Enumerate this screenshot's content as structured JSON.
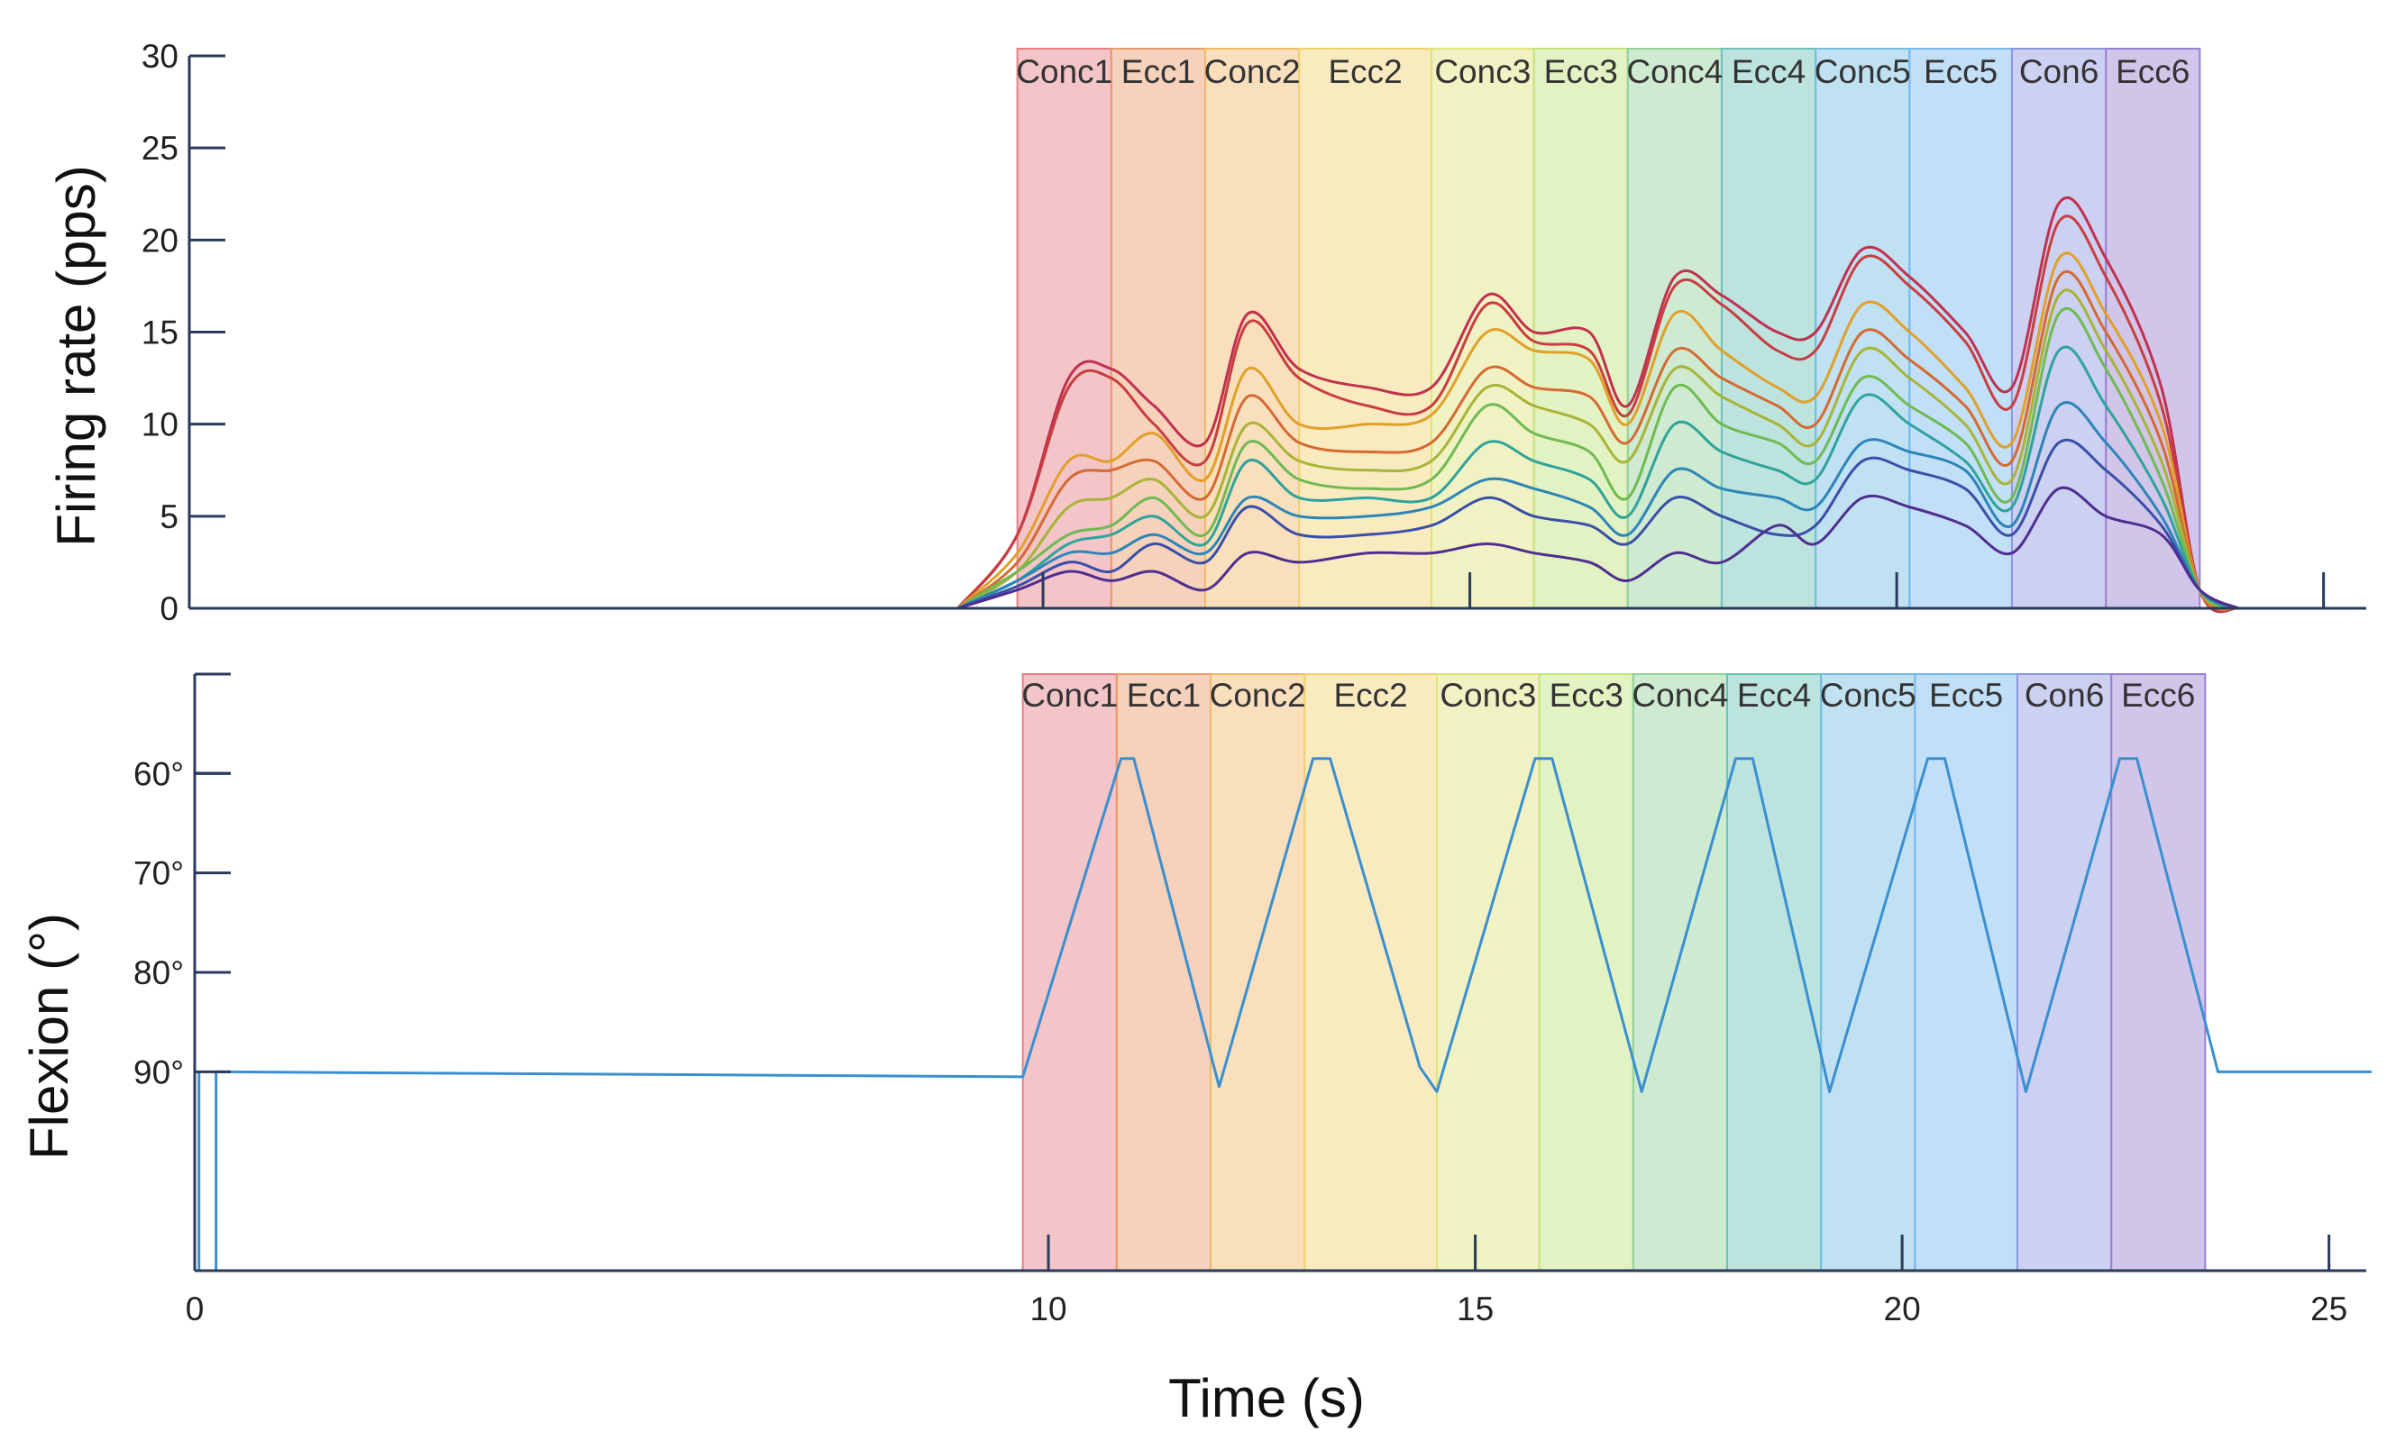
{
  "chart_data": [
    {
      "type": "line",
      "panel": "top",
      "ylabel": "Firing rate (pps)",
      "xlabel": "",
      "ylim": [
        0,
        30
      ],
      "xlim": [
        0,
        25.5
      ],
      "yticks": [
        0,
        5,
        10,
        15,
        20,
        25,
        30
      ],
      "xticks": [
        10,
        15,
        20,
        25
      ],
      "phases": [
        {
          "label": "Conc1",
          "start": 9.7,
          "end": 10.8,
          "color": "#e57f84"
        },
        {
          "label": "Ecc1",
          "start": 10.8,
          "end": 11.9,
          "color": "#ec9a6a"
        },
        {
          "label": "Conc2",
          "start": 11.9,
          "end": 13.0,
          "color": "#f1b86a"
        },
        {
          "label": "Ecc2",
          "start": 13.0,
          "end": 14.55,
          "color": "#f1d272"
        },
        {
          "label": "Conc3",
          "start": 14.55,
          "end": 15.75,
          "color": "#dfe27a"
        },
        {
          "label": "Ecc3",
          "start": 15.75,
          "end": 16.85,
          "color": "#c2e37a"
        },
        {
          "label": "Conc4",
          "start": 16.85,
          "end": 17.95,
          "color": "#92d19a"
        },
        {
          "label": "Ecc4",
          "start": 17.95,
          "end": 19.05,
          "color": "#6cc2b9"
        },
        {
          "label": "Conc5",
          "start": 19.05,
          "end": 20.15,
          "color": "#74bddf"
        },
        {
          "label": "Ecc5",
          "start": 20.15,
          "end": 21.35,
          "color": "#78b8f0"
        },
        {
          "label": "Con6",
          "start": 21.35,
          "end": 22.45,
          "color": "#8f96e0"
        },
        {
          "label": "Ecc6",
          "start": 22.45,
          "end": 23.55,
          "color": "#9880d0"
        }
      ],
      "x": [
        9.0,
        9.7,
        10.3,
        10.8,
        11.3,
        11.9,
        12.4,
        13.0,
        13.8,
        14.55,
        15.2,
        15.75,
        16.4,
        16.85,
        17.4,
        17.95,
        18.6,
        19.05,
        19.6,
        20.15,
        20.8,
        21.35,
        21.9,
        22.45,
        23.1,
        23.55,
        24.0
      ],
      "series": [
        {
          "color": "#c0314f",
          "values": [
            0,
            4,
            12.5,
            13,
            11,
            9,
            16,
            13,
            12,
            12,
            17,
            15,
            15,
            11,
            18,
            17,
            15,
            15,
            19.5,
            18,
            15,
            12,
            22,
            19,
            12,
            1,
            0
          ]
        },
        {
          "color": "#c83e40",
          "values": [
            0,
            4,
            12,
            12.5,
            10,
            8,
            15.5,
            12.5,
            11,
            11,
            16.5,
            14.5,
            14,
            10.5,
            17.5,
            16.5,
            14,
            14,
            19,
            17.5,
            14.5,
            11,
            21,
            18,
            11,
            1,
            0
          ]
        },
        {
          "color": "#e0a02a",
          "values": [
            0,
            3,
            8,
            8,
            9.5,
            7,
            13,
            10,
            10,
            10.5,
            15,
            14,
            13.5,
            10,
            16,
            14,
            12,
            11.5,
            16.5,
            15,
            12,
            9,
            19,
            16,
            10,
            1,
            0
          ]
        },
        {
          "color": "#d46a32",
          "values": [
            0,
            2.5,
            7,
            7.5,
            8,
            6,
            11.5,
            9,
            8.5,
            9,
            13,
            12,
            11.5,
            9,
            14,
            12.5,
            11,
            10,
            15,
            13.5,
            11,
            8,
            18,
            15,
            9,
            1,
            0
          ]
        },
        {
          "color": "#a8b437",
          "values": [
            0,
            2,
            5.5,
            6,
            7,
            5,
            10,
            8,
            7.5,
            8,
            12,
            11,
            10,
            8,
            13,
            11.5,
            10,
            9,
            14,
            12.5,
            10,
            7,
            17,
            14,
            8,
            1,
            0
          ]
        },
        {
          "color": "#6fba52",
          "values": [
            0,
            2,
            4,
            4.5,
            6,
            4,
            9,
            7,
            6.5,
            7,
            11,
            9.5,
            8.5,
            6,
            12,
            10,
            9,
            8,
            12.5,
            11,
            9,
            6,
            16,
            13,
            7,
            1,
            0
          ]
        },
        {
          "color": "#2fa39a",
          "values": [
            0,
            1.5,
            3.5,
            4,
            5,
            3.5,
            8,
            6,
            6,
            6,
            9,
            8,
            7,
            5,
            10,
            8.5,
            7.5,
            7,
            11.5,
            10,
            8,
            5.5,
            14,
            11,
            6,
            1,
            0
          ]
        },
        {
          "color": "#2d85b7",
          "values": [
            0,
            1.5,
            3,
            3,
            4,
            3,
            6,
            5,
            5,
            5.5,
            7,
            6.5,
            5.5,
            4,
            7.5,
            6.5,
            6,
            5.5,
            9,
            8.5,
            7.5,
            4.5,
            11,
            9,
            5,
            1,
            0
          ]
        },
        {
          "color": "#3a4fa8",
          "values": [
            0,
            1.2,
            2.5,
            2,
            3.5,
            2.5,
            5.5,
            4,
            4,
            4.5,
            6,
            5,
            4.5,
            3.5,
            6,
            5,
            4,
            4.5,
            8,
            7.5,
            6.5,
            4,
            9,
            7.5,
            4.5,
            1,
            0
          ]
        },
        {
          "color": "#4f2e8f",
          "values": [
            0,
            1,
            2,
            1.5,
            2,
            1,
            3,
            2.5,
            3,
            3,
            3.5,
            3,
            2.5,
            1.5,
            3,
            2.5,
            4.5,
            3.5,
            6,
            5.5,
            4.5,
            3,
            6.5,
            5,
            4,
            1,
            0
          ]
        }
      ]
    },
    {
      "type": "line",
      "panel": "bottom",
      "ylabel": "Flexion (°)",
      "xlabel": "Time (s)",
      "xlim": [
        0,
        25.5
      ],
      "xticks": [
        0,
        10,
        15,
        20,
        25
      ],
      "xtick_labels": [
        "0",
        "10",
        "15",
        "20",
        "25"
      ],
      "yticks": [
        60,
        70,
        80,
        90
      ],
      "ytick_labels": [
        "60°",
        "70°",
        "80°",
        "90°"
      ],
      "ylim_inverted": [
        110,
        50
      ],
      "phases": [
        {
          "label": "Conc1",
          "start": 9.7,
          "end": 10.8,
          "color": "#e57f84"
        },
        {
          "label": "Ecc1",
          "start": 10.8,
          "end": 11.9,
          "color": "#ec9a6a"
        },
        {
          "label": "Conc2",
          "start": 11.9,
          "end": 13.0,
          "color": "#f1b86a"
        },
        {
          "label": "Ecc2",
          "start": 13.0,
          "end": 14.55,
          "color": "#f1d272"
        },
        {
          "label": "Conc3",
          "start": 14.55,
          "end": 15.75,
          "color": "#dfe27a"
        },
        {
          "label": "Ecc3",
          "start": 15.75,
          "end": 16.85,
          "color": "#c2e37a"
        },
        {
          "label": "Conc4",
          "start": 16.85,
          "end": 17.95,
          "color": "#92d19a"
        },
        {
          "label": "Ecc4",
          "start": 17.95,
          "end": 19.05,
          "color": "#6cc2b9"
        },
        {
          "label": "Conc5",
          "start": 19.05,
          "end": 20.15,
          "color": "#74bddf"
        },
        {
          "label": "Ecc5",
          "start": 20.15,
          "end": 21.35,
          "color": "#78b8f0"
        },
        {
          "label": "Con6",
          "start": 21.35,
          "end": 22.45,
          "color": "#8f96e0"
        },
        {
          "label": "Ecc6",
          "start": 22.45,
          "end": 23.55,
          "color": "#9880d0"
        }
      ],
      "series": [
        {
          "color": "#3a8fd0",
          "x": [
            0.05,
            0.05,
            0.25,
            0.25,
            9.7,
            10.85,
            11.0,
            12.0,
            13.1,
            13.3,
            14.35,
            14.55,
            15.7,
            15.9,
            16.95,
            18.05,
            18.25,
            19.15,
            20.3,
            20.5,
            21.45,
            22.55,
            22.75,
            23.7,
            25.5
          ],
          "values": [
            90,
            110,
            110,
            90,
            90.5,
            58.5,
            58.5,
            91.5,
            58.5,
            58.5,
            89.5,
            92,
            58.5,
            58.5,
            92,
            58.5,
            58.5,
            92,
            58.5,
            58.5,
            92,
            58.5,
            58.5,
            90,
            90
          ]
        }
      ]
    }
  ]
}
